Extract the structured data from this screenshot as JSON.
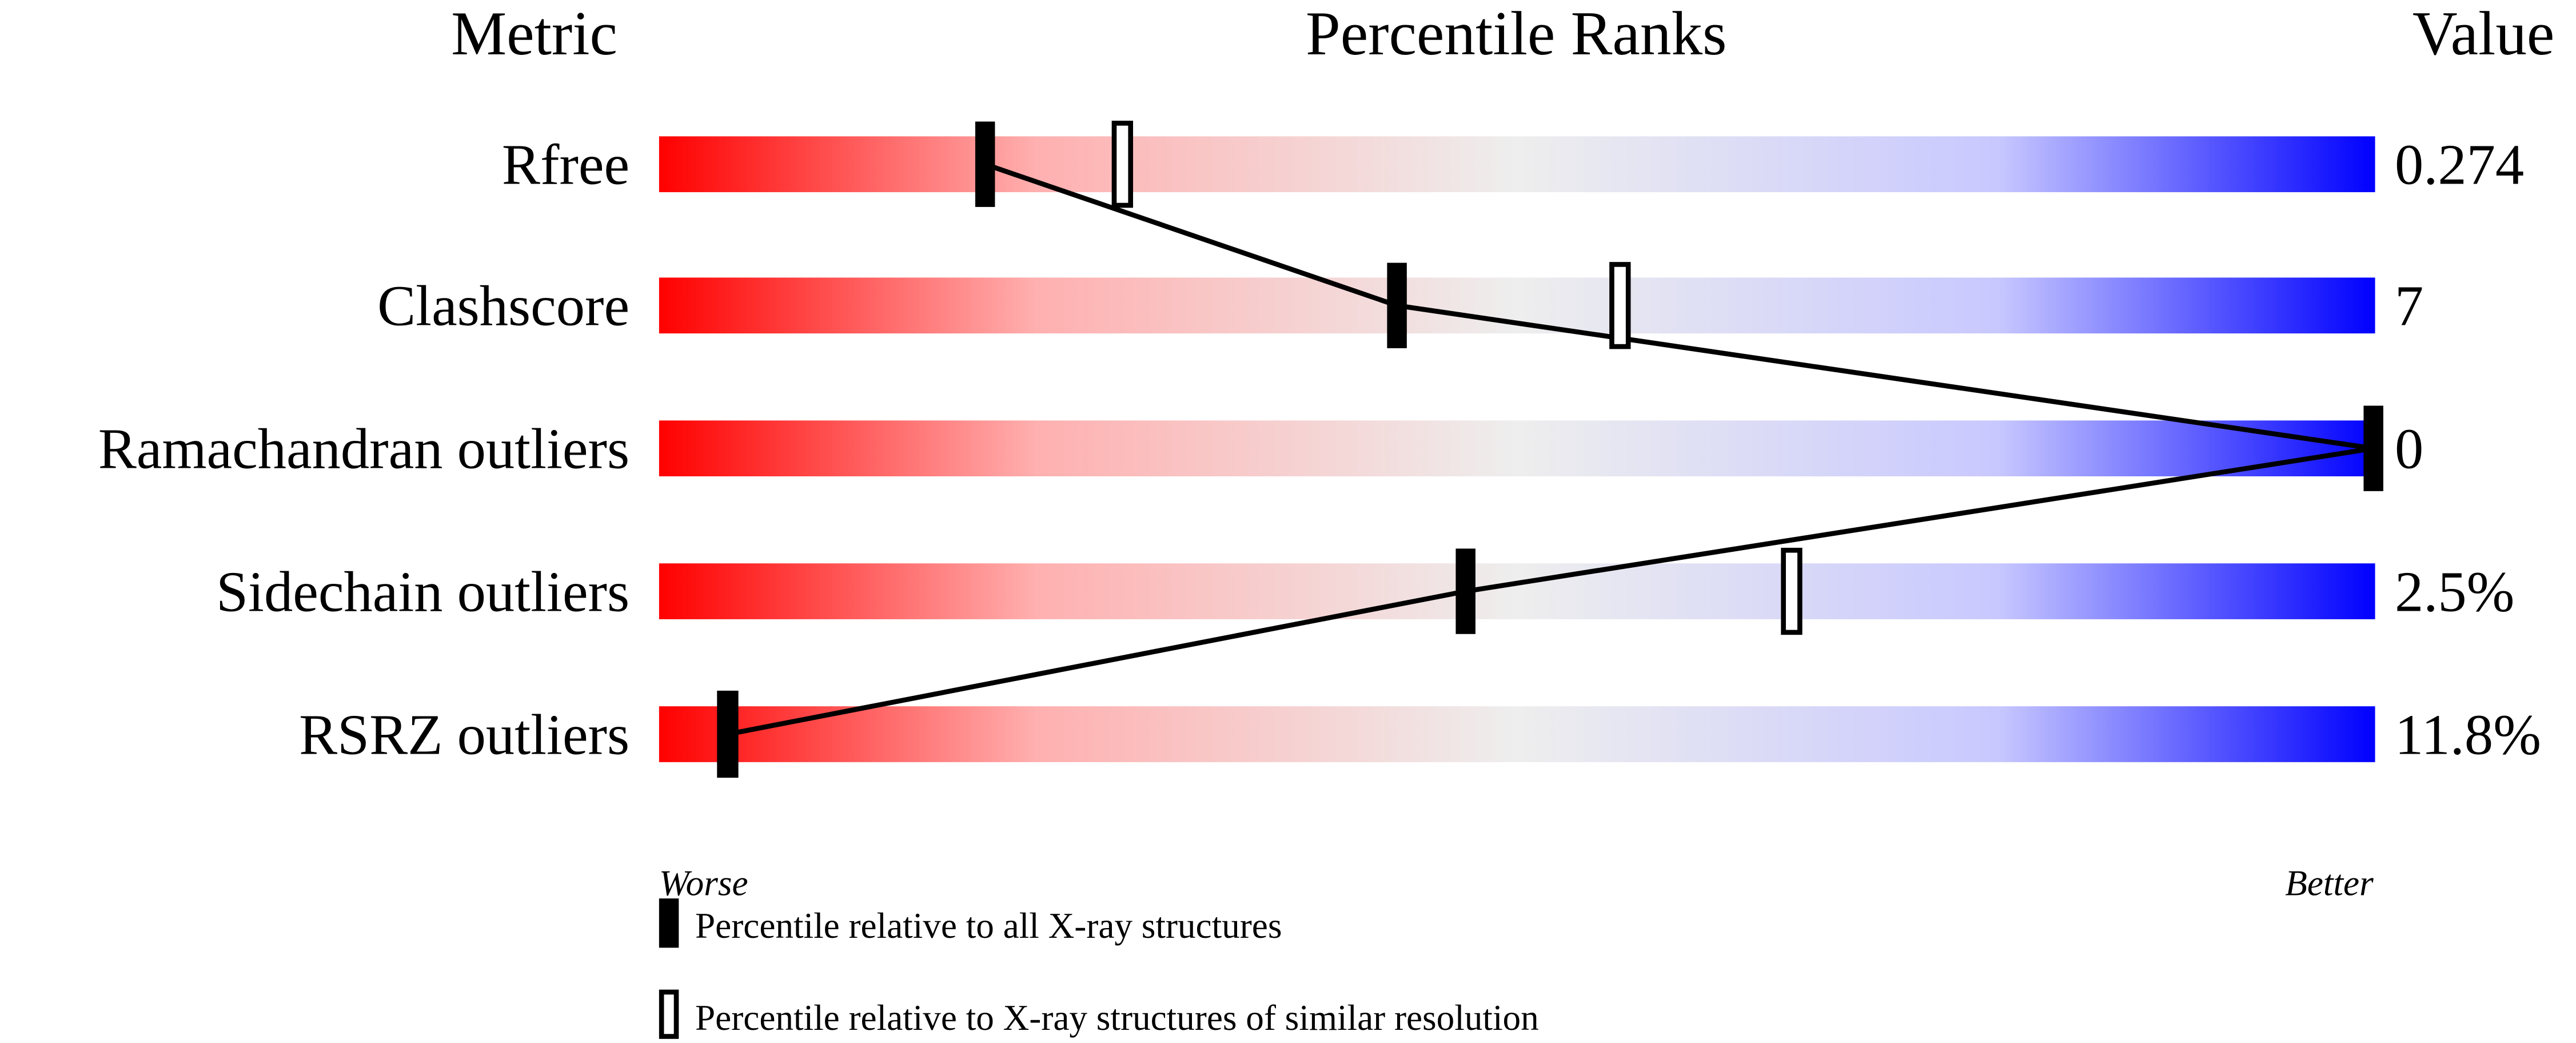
{
  "chart_data": {
    "type": "percentile-ranks",
    "headers": {
      "metric": "Metric",
      "title": "Percentile Ranks",
      "value": "Value"
    },
    "xlim": [
      0,
      100
    ],
    "axis_labels": {
      "left": "Worse",
      "right": "Better"
    },
    "colors": {
      "worse": "#ff0000",
      "middle": "#eeeeee",
      "better": "#0000ff"
    },
    "rows": [
      {
        "metric": "Rfree",
        "value": "0.274",
        "percentile_all": 19,
        "percentile_similar": 27
      },
      {
        "metric": "Clashscore",
        "value": "7",
        "percentile_all": 43,
        "percentile_similar": 56
      },
      {
        "metric": "Ramachandran outliers",
        "value": "0",
        "percentile_all": 100,
        "percentile_similar": null
      },
      {
        "metric": "Sidechain outliers",
        "value": "2.5%",
        "percentile_all": 47,
        "percentile_similar": 66
      },
      {
        "metric": "RSRZ outliers",
        "value": "11.8%",
        "percentile_all": 4,
        "percentile_similar": 4
      }
    ],
    "legend": [
      {
        "marker": "filled",
        "label": "Percentile relative to all X-ray structures"
      },
      {
        "marker": "open",
        "label": "Percentile relative to X-ray structures of similar resolution"
      }
    ]
  }
}
